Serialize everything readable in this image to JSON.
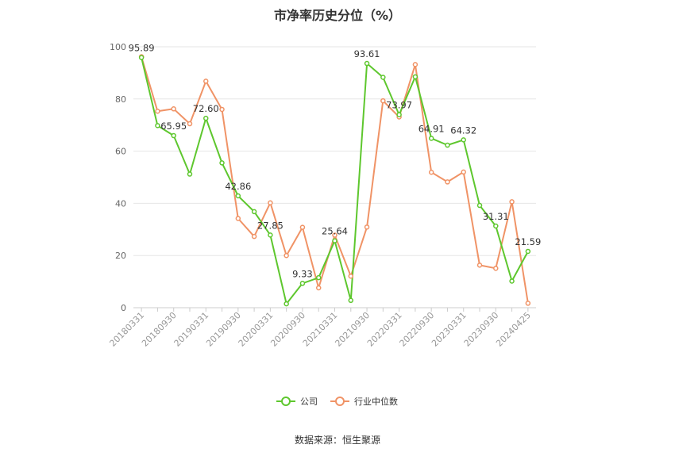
{
  "title": "市净率历史分位（%）",
  "source": "数据来源：恒生聚源",
  "chart_data": {
    "type": "line",
    "ylim": [
      0,
      100
    ],
    "yticks": [
      0,
      20,
      40,
      60,
      80,
      100
    ],
    "grid": true,
    "legend_position": "bottom-center",
    "x": [
      "20180331",
      "20180630",
      "20180930",
      "20181231",
      "20190331",
      "20190630",
      "20190930",
      "20191231",
      "20200331",
      "20200630",
      "20200930",
      "20201231",
      "20210331",
      "20210630",
      "20210930",
      "20211231",
      "20220331",
      "20220630",
      "20220930",
      "20221231",
      "20230331",
      "20230630",
      "20230930",
      "20231231",
      "20240425"
    ],
    "xtick_labels": [
      "20180331",
      "20180930",
      "20190331",
      "20190930",
      "20200331",
      "20200930",
      "20210331",
      "20210930",
      "20220331",
      "20220930",
      "20230331",
      "20230930",
      "20240425"
    ],
    "series": [
      {
        "name": "公司",
        "color": "#5ec72e",
        "values": [
          95.89,
          69.8,
          65.95,
          51.2,
          72.6,
          55.5,
          42.86,
          36.8,
          27.85,
          1.5,
          9.33,
          11.5,
          25.64,
          2.8,
          93.61,
          88.3,
          73.97,
          88.5,
          64.91,
          62.3,
          64.32,
          39.2,
          31.31,
          10.2,
          21.59
        ],
        "labels": {
          "0": "95.89",
          "2": "65.95",
          "4": "72.60",
          "6": "42.86",
          "8": "27.85",
          "10": "9.33",
          "12": "25.64",
          "14": "93.61",
          "16": "73.97",
          "18": "64.91",
          "20": "64.32",
          "22": "31.31",
          "24": "21.59"
        }
      },
      {
        "name": "行业中位数",
        "color": "#f09366",
        "values": [
          96.2,
          75.3,
          76.2,
          70.5,
          86.8,
          76.0,
          34.2,
          27.3,
          40.2,
          20.0,
          30.8,
          7.6,
          27.8,
          12.1,
          30.9,
          79.3,
          73.1,
          93.2,
          51.9,
          48.2,
          52.0,
          16.3,
          15.1,
          40.6,
          1.7
        ]
      }
    ]
  }
}
